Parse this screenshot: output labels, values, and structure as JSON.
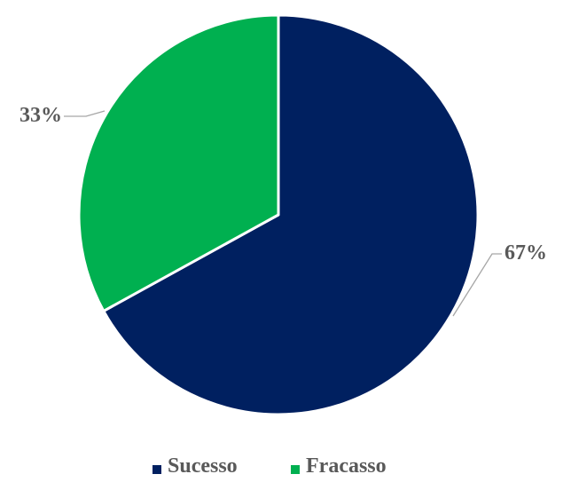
{
  "chart_data": {
    "type": "pie",
    "categories": [
      "Sucesso",
      "Fracasso"
    ],
    "values": [
      67,
      33
    ],
    "unit": "%",
    "data_labels": [
      "67%",
      "33%"
    ],
    "colors": [
      "#002060",
      "#00B050"
    ],
    "title": "",
    "legend_position": "bottom",
    "start_angle": "12 o'clock, clockwise"
  }
}
